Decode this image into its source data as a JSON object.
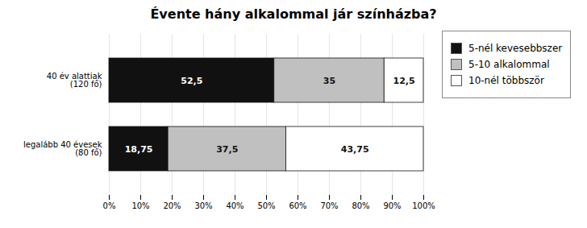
{
  "chart_data": {
    "type": "bar",
    "orientation": "horizontal",
    "stacked": true,
    "title": "Évente hány alkalommal jár színházba?",
    "categories": [
      "40 év alattiak\n(120 fő)",
      "legalább 40 évesek\n(80 fő)"
    ],
    "series": [
      {
        "name": "5-nél kevesebbszer",
        "color": "#111111",
        "values": [
          52.5,
          18.75
        ],
        "value_labels": [
          "52,5",
          "18,75"
        ]
      },
      {
        "name": "5-10 alkalommal",
        "color": "#c0c0c0",
        "values": [
          35.0,
          37.5
        ],
        "value_labels": [
          "35",
          "37,5"
        ]
      },
      {
        "name": "10-nél többször",
        "color": "#ffffff",
        "values": [
          12.5,
          43.75
        ],
        "value_labels": [
          "12,5",
          "43,75"
        ]
      }
    ],
    "xlim": [
      0,
      100
    ],
    "xticks": [
      {
        "value": 0,
        "label": "0%"
      },
      {
        "value": 10,
        "label": "10%"
      },
      {
        "value": 20,
        "label": "20%"
      },
      {
        "value": 30,
        "label": "30%"
      },
      {
        "value": 40,
        "label": "40%"
      },
      {
        "value": 50,
        "label": "50%"
      },
      {
        "value": 60,
        "label": "60%"
      },
      {
        "value": 70,
        "label": "70%"
      },
      {
        "value": 80,
        "label": "80%"
      },
      {
        "value": 90,
        "label": "90%"
      },
      {
        "value": 100,
        "label": "100%"
      }
    ],
    "grid": true,
    "legend": "right",
    "data_labels": true
  }
}
